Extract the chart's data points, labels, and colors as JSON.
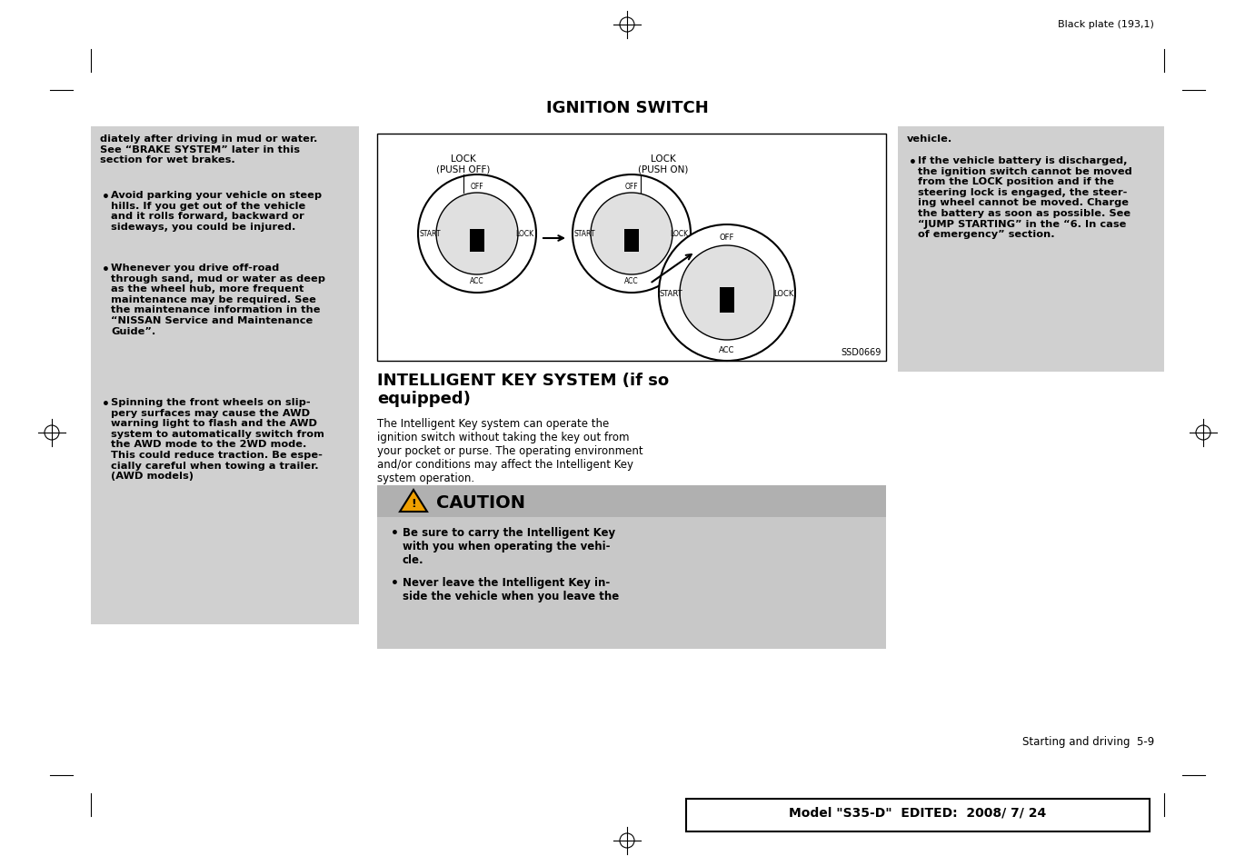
{
  "page_bg": "#ffffff",
  "gray_bg": "#d0d0d0",
  "caution_bg": "#c8c8c8",
  "top_text": "Black plate (193,1)",
  "title": "IGNITION SWITCH",
  "left_col_text_top": "diately after driving in mud or water.\nSee “BRAKE SYSTEM” later in this\nsection for wet brakes.",
  "left_col_bullets": [
    "Avoid parking your vehicle on steep\nhills. If you get out of the vehicle\nand it rolls forward, backward or\nsideways, you could be injured.",
    "Whenever you drive off-road\nthrough sand, mud or water as deep\nas the wheel hub, more frequent\nmaintenance may be required. See\nthe maintenance information in the\n“NISSAN Service and Maintenance\nGuide”.",
    "Spinning the front wheels on slip-\npery surfaces may cause the AWD\nwarning light to flash and the AWD\nsystem to automatically switch from\nthe AWD mode to the 2WD mode.\nThis could reduce traction. Be espe-\ncially careful when towing a trailer.\n(AWD models)"
  ],
  "right_col_text_top": "vehicle.",
  "right_col_bullets": [
    "If the vehicle battery is discharged,\nthe ignition switch cannot be moved\nfrom the LOCK position and if the\nsteering lock is engaged, the steer-\ning wheel cannot be moved. Charge\nthe battery as soon as possible. See\n“JUMP STARTING” in the “6. In case\nof emergency” section."
  ],
  "mid_title": "INTELLIGENT KEY SYSTEM (if so\nequipped)",
  "mid_body": "The Intelligent Key system can operate the\nignition switch without taking the key out from\nyour pocket or purse. The operating environment\nand/or conditions may affect the Intelligent Key\nsystem operation.",
  "caution_title": "CAUTION",
  "caution_bullets": [
    "Be sure to carry the Intelligent Key\nwith you when operating the vehi-\ncle.",
    "Never leave the Intelligent Key in-\nside the vehicle when you leave the"
  ],
  "footer_left": "Starting and driving  5-9",
  "footer_box": "Model \"S35-D\"  EDITED:  2008/ 7/ 24",
  "image_caption": "SSD0669",
  "lock_push_off_label": "LOCK\n(PUSH OFF)",
  "lock_push_on_label": "LOCK\n(PUSH ON)"
}
